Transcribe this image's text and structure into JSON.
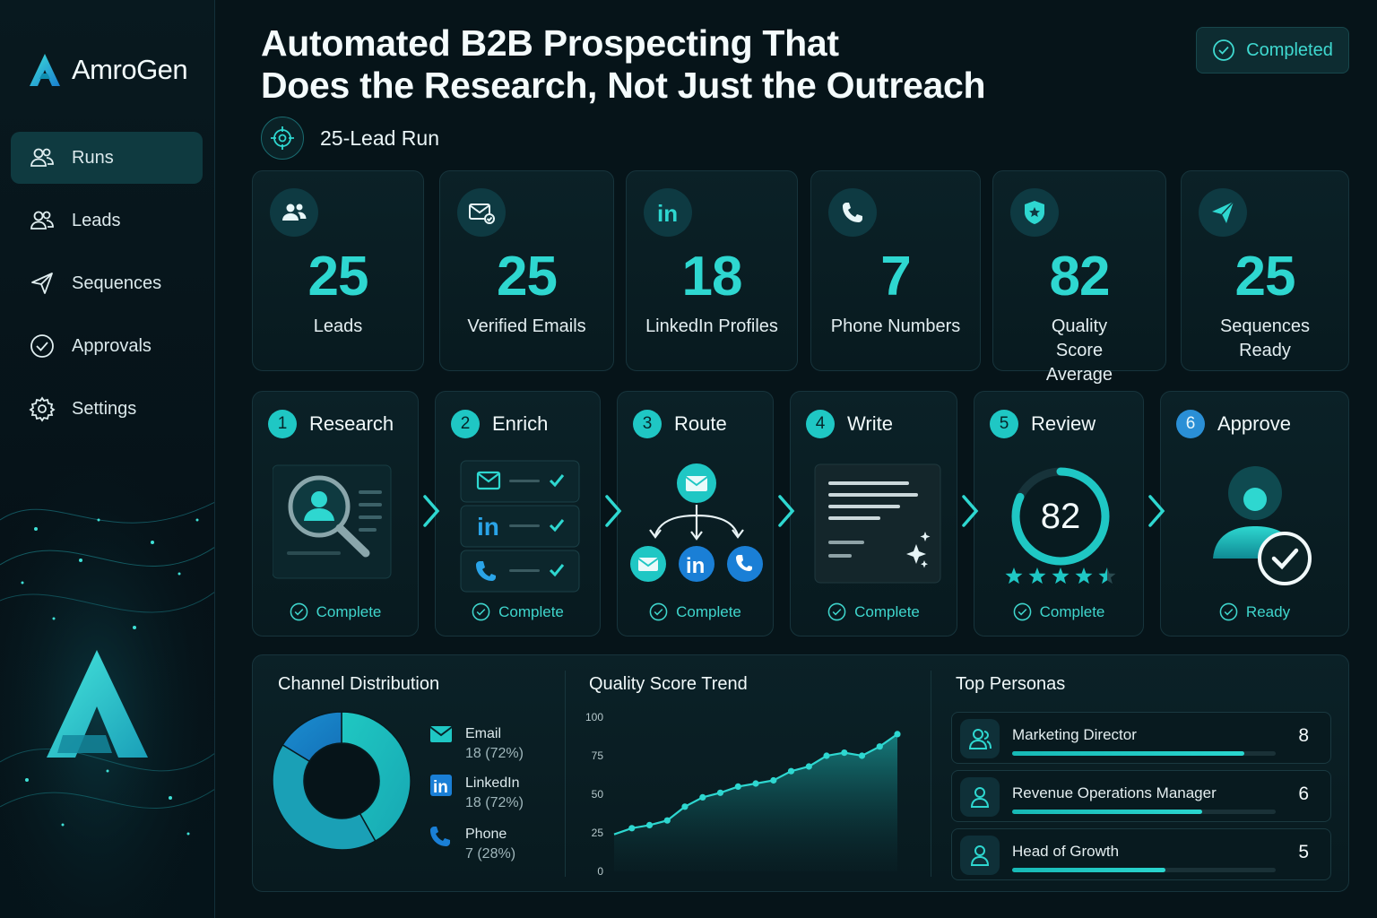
{
  "app": {
    "name": "AmroGen"
  },
  "sidebar": {
    "items": [
      {
        "label": "Runs",
        "icon": "users-icon",
        "active": true
      },
      {
        "label": "Leads",
        "icon": "users-icon"
      },
      {
        "label": "Sequences",
        "icon": "send-icon"
      },
      {
        "label": "Approvals",
        "icon": "check-circle-icon"
      },
      {
        "label": "Settings",
        "icon": "gear-icon"
      }
    ]
  },
  "header": {
    "title_line1": "Automated B2B Prospecting That",
    "title_line2": "Does the Research, Not Just the Outreach",
    "run_label": "25-Lead Run",
    "status": "Completed"
  },
  "stats": [
    {
      "value": "25",
      "label": "Leads",
      "icon": "users-icon"
    },
    {
      "value": "25",
      "label": "Verified Emails",
      "icon": "mail-check-icon"
    },
    {
      "value": "18",
      "label": "LinkedIn Profiles",
      "icon": "linkedin-icon"
    },
    {
      "value": "7",
      "label": "Phone Numbers",
      "icon": "phone-icon"
    },
    {
      "value": "82",
      "label": "Quality Score Average",
      "icon": "shield-star-icon"
    },
    {
      "value": "25",
      "label": "Sequences Ready",
      "icon": "send-icon"
    }
  ],
  "steps": [
    {
      "num": "1",
      "title": "Research",
      "status": "Complete"
    },
    {
      "num": "2",
      "title": "Enrich",
      "status": "Complete"
    },
    {
      "num": "3",
      "title": "Route",
      "status": "Complete"
    },
    {
      "num": "4",
      "title": "Write",
      "status": "Complete"
    },
    {
      "num": "5",
      "title": "Review",
      "status": "Complete",
      "score": "82",
      "stars": 4.5
    },
    {
      "num": "6",
      "title": "Approve",
      "status": "Ready"
    }
  ],
  "channel_distribution": {
    "title": "Channel Distribution",
    "items": [
      {
        "name": "Email",
        "detail": "18 (72%)",
        "icon": "mail-icon"
      },
      {
        "name": "LinkedIn",
        "detail": "18 (72%)",
        "icon": "linkedin-icon"
      },
      {
        "name": "Phone",
        "detail": "7 (28%)",
        "icon": "phone-icon"
      }
    ]
  },
  "quality_trend": {
    "title": "Quality Score Trend"
  },
  "chart_data": {
    "type": "area",
    "title": "Quality Score Trend",
    "ylim": [
      0,
      100
    ],
    "yticks": [
      0,
      25,
      50,
      75,
      100
    ],
    "x": [
      1,
      2,
      3,
      4,
      5,
      6,
      7,
      8,
      9,
      10,
      11,
      12,
      13,
      14,
      15,
      16,
      17
    ],
    "values": [
      24,
      28,
      30,
      33,
      42,
      48,
      51,
      55,
      57,
      59,
      65,
      68,
      75,
      77,
      75,
      81,
      89
    ],
    "donut": [
      {
        "name": "Email",
        "value": 18
      },
      {
        "name": "LinkedIn",
        "value": 18
      },
      {
        "name": "Phone",
        "value": 7
      }
    ]
  },
  "personas": {
    "title": "Top Personas",
    "items": [
      {
        "name": "Marketing Director",
        "count": "8",
        "fill": 0.88
      },
      {
        "name": "Revenue Operations Manager",
        "count": "6",
        "fill": 0.72
      },
      {
        "name": "Head of Growth",
        "count": "5",
        "fill": 0.58
      }
    ]
  },
  "colors": {
    "accent": "#2ed7d0",
    "background": "#061419",
    "blue": "#2a8fd6"
  }
}
